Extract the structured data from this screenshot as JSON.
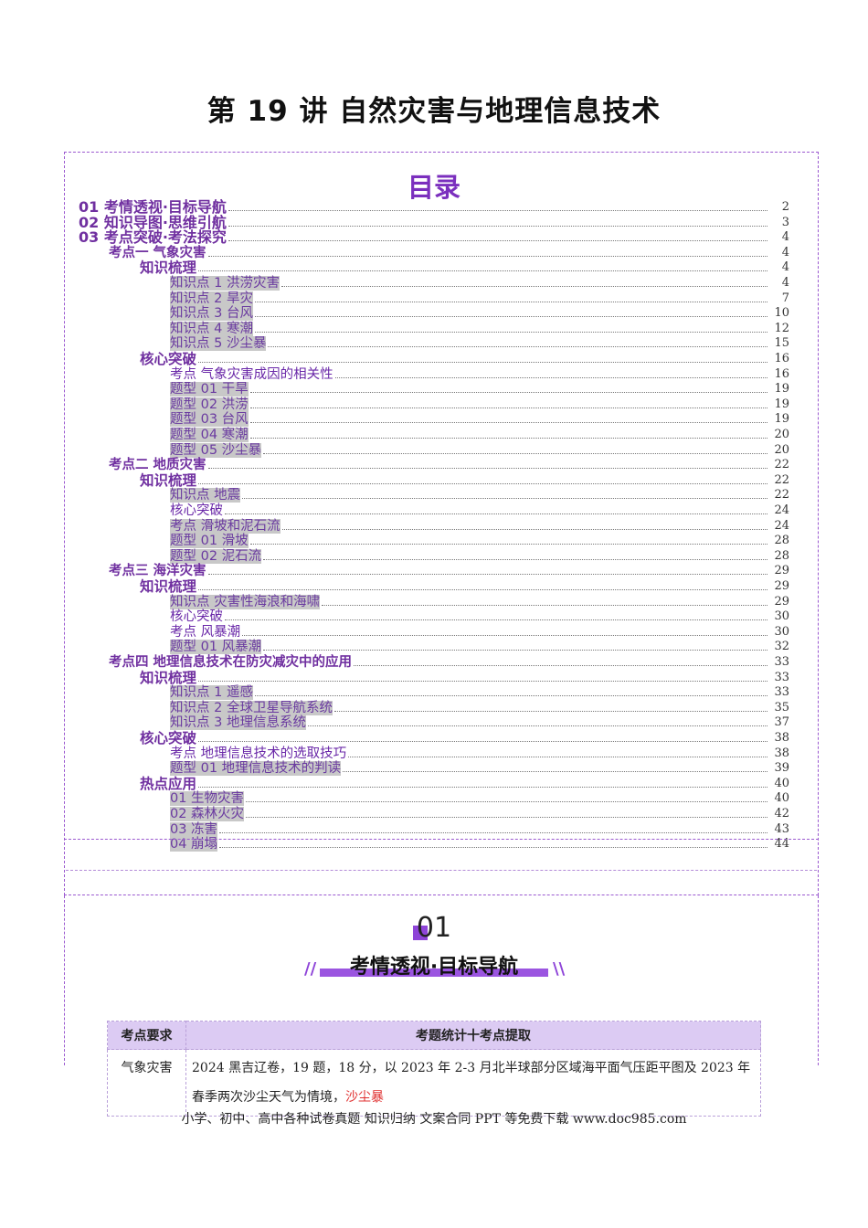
{
  "document": {
    "title": "第 19 讲  自然灾害与地理信息技术"
  },
  "toc": {
    "heading": "目录",
    "entries": [
      {
        "text": "01 考情透视·目标导航",
        "page": "2",
        "level": 1,
        "hl": false
      },
      {
        "text": "02 知识导图·思维引航",
        "page": "3",
        "level": 1,
        "hl": false
      },
      {
        "text": "03 考点突破·考法探究",
        "page": "4",
        "level": 1,
        "hl": false
      },
      {
        "text": "考点一   气象灾害",
        "page": "4",
        "level": 2,
        "hl": false
      },
      {
        "text": "知识梳理",
        "page": "4",
        "level": 3,
        "hl": false
      },
      {
        "text": "知识点 1 洪涝灾害",
        "page": "4",
        "level": 4,
        "hl": true
      },
      {
        "text": "知识点 2 旱灾",
        "page": "7",
        "level": 4,
        "hl": true
      },
      {
        "text": "知识点 3 台风",
        "page": "10",
        "level": 4,
        "hl": true
      },
      {
        "text": "知识点 4 寒潮",
        "page": "12",
        "level": 4,
        "hl": true
      },
      {
        "text": "知识点 5 沙尘暴",
        "page": "15",
        "level": 4,
        "hl": true
      },
      {
        "text": "核心突破",
        "page": "16",
        "level": 3,
        "hl": false
      },
      {
        "text": "考点 气象灾害成因的相关性",
        "page": "16",
        "level": 5,
        "hl": false
      },
      {
        "text": "题型 01 干旱",
        "page": "19",
        "level": 4,
        "hl": true
      },
      {
        "text": "题型 02 洪涝",
        "page": "19",
        "level": 4,
        "hl": true
      },
      {
        "text": "题型 03 台风",
        "page": "19",
        "level": 4,
        "hl": true
      },
      {
        "text": "题型 04 寒潮",
        "page": "20",
        "level": 4,
        "hl": true
      },
      {
        "text": "题型 05 沙尘暴",
        "page": "20",
        "level": 4,
        "hl": true
      },
      {
        "text": "考点二   地质灾害",
        "page": "22",
        "level": 2,
        "hl": false
      },
      {
        "text": "知识梳理",
        "page": "22",
        "level": 3,
        "hl": false
      },
      {
        "text": "知识点 地震",
        "page": "22",
        "level": 4,
        "hl": true
      },
      {
        "text": "核心突破",
        "page": "24",
        "level": 5,
        "hl": false
      },
      {
        "text": "考点 滑坡和泥石流",
        "page": "24",
        "level": 4,
        "hl": true
      },
      {
        "text": "题型 01 滑坡",
        "page": "28",
        "level": 4,
        "hl": true
      },
      {
        "text": "题型 02 泥石流",
        "page": "28",
        "level": 4,
        "hl": true
      },
      {
        "text": "考点三   海洋灾害",
        "page": "29",
        "level": 2,
        "hl": false
      },
      {
        "text": "知识梳理",
        "page": "29",
        "level": 3,
        "hl": false
      },
      {
        "text": "知识点 灾害性海浪和海啸",
        "page": "29",
        "level": 4,
        "hl": true
      },
      {
        "text": "核心突破",
        "page": "30",
        "level": 5,
        "hl": false
      },
      {
        "text": "考点 风暴潮",
        "page": "30",
        "level": 5,
        "hl": false
      },
      {
        "text": "题型 01 风暴潮",
        "page": "32",
        "level": 4,
        "hl": true
      },
      {
        "text": "考点四   地理信息技术在防灾减灾中的应用",
        "page": "33",
        "level": 2,
        "hl": false
      },
      {
        "text": "知识梳理",
        "page": "33",
        "level": 3,
        "hl": false
      },
      {
        "text": "知识点 1 遥感",
        "page": "33",
        "level": 4,
        "hl": true
      },
      {
        "text": "知识点 2 全球卫星导航系统",
        "page": "35",
        "level": 4,
        "hl": true
      },
      {
        "text": "知识点 3 地理信息系统",
        "page": "37",
        "level": 4,
        "hl": true
      },
      {
        "text": "核心突破",
        "page": "38",
        "level": 3,
        "hl": false
      },
      {
        "text": "考点 地理信息技术的选取技巧",
        "page": "38",
        "level": 5,
        "hl": false
      },
      {
        "text": "题型 01 地理信息技术的判读",
        "page": "39",
        "level": 4,
        "hl": true
      },
      {
        "text": "热点应用",
        "page": "40",
        "level": 3,
        "hl": false
      },
      {
        "text": "01 生物灾害",
        "page": "40",
        "level": 4,
        "hl": true
      },
      {
        "text": "02 森林火灾",
        "page": "42",
        "level": 4,
        "hl": true
      },
      {
        "text": "03 冻害",
        "page": "43",
        "level": 4,
        "hl": true
      },
      {
        "text": "04 崩塌",
        "page": "44",
        "level": 4,
        "hl": true
      }
    ]
  },
  "section": {
    "number": "01",
    "title": "考情透视·目标导航"
  },
  "exam_table": {
    "headers": [
      "考点要求",
      "考题统计十考点提取"
    ],
    "row": {
      "topic": "气象灾害",
      "text": "2024 黑吉辽卷，19 题，18 分，以 2023 年 2-3 月北半球部分区域海平面气压距平图及 2023 年春季两次沙尘天气为情境，",
      "highlight": "沙尘暴"
    }
  },
  "footer": {
    "text": "小学、初中、高中各种试卷真题  知识归纳  文案合同  PPT 等免费下载      www.doc985.com"
  }
}
